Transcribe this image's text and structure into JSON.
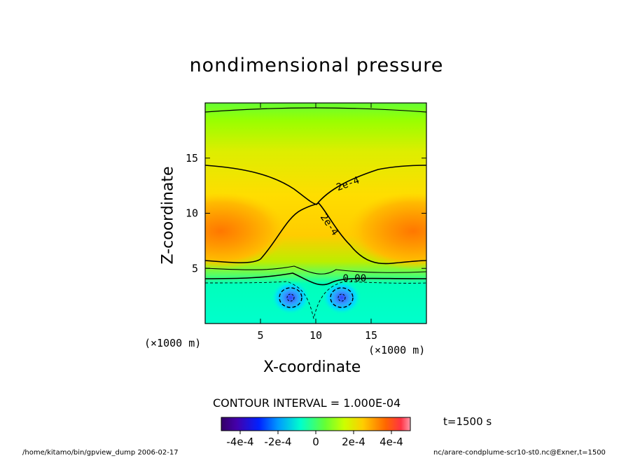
{
  "title": "nondimensional pressure",
  "xlabel": "X-coordinate",
  "ylabel": "Z-coordinate",
  "x_unit_left": "(×1000 m)",
  "x_unit_right": "(×1000 m)",
  "contour_interval": "CONTOUR INTERVAL = 1.000E-04",
  "time_label": "t=1500 s",
  "footer_left": "/home/kitamo/bin/gpview_dump  2006-02-17",
  "footer_right": "nc/arare-condplume-scr10-st0.nc@Exner,t=1500",
  "colors": {
    "background": "#ffffff",
    "low": "#0033ff",
    "zero": "#00ffcc",
    "high": "#ff6600"
  },
  "chart_data": {
    "type": "heatmap",
    "title": "nondimensional pressure",
    "xlabel": "X-coordinate",
    "ylabel": "Z-coordinate",
    "xlim": [
      0,
      20
    ],
    "ylim": [
      0,
      20
    ],
    "x_ticks": [
      "5",
      "10",
      "15"
    ],
    "y_ticks": [
      "5",
      "10",
      "15"
    ],
    "x_tick_values": [
      5,
      10,
      15
    ],
    "y_tick_values": [
      5,
      10,
      15
    ],
    "contour_labels": [
      {
        "text": "2e-4",
        "x": 13.0,
        "y": 12.4
      },
      {
        "text": "2e-4",
        "x": 11.0,
        "y": 8.8
      },
      {
        "text": "0.00",
        "x": 13.5,
        "y": 3.8
      }
    ],
    "colorbar": {
      "range": [
        -0.0005,
        0.0005
      ],
      "tick_labels": [
        "-4e-4",
        "-2e-4",
        "0",
        "2e-4",
        "4e-4"
      ],
      "tick_values": [
        -0.0004,
        -0.0002,
        0,
        0.0002,
        0.0004
      ]
    },
    "features": [
      {
        "name": "low-pressure-cell-left",
        "x": 7.8,
        "z": 2.2,
        "value": -0.0004
      },
      {
        "name": "low-pressure-cell-right",
        "x": 12.2,
        "z": 2.2,
        "value": -0.0004
      },
      {
        "name": "high-pressure-lobe-left",
        "x": 1.5,
        "z": 7.8,
        "value": 0.0004
      },
      {
        "name": "high-pressure-lobe-right",
        "x": 18.5,
        "z": 7.8,
        "value": 0.0004
      }
    ]
  }
}
